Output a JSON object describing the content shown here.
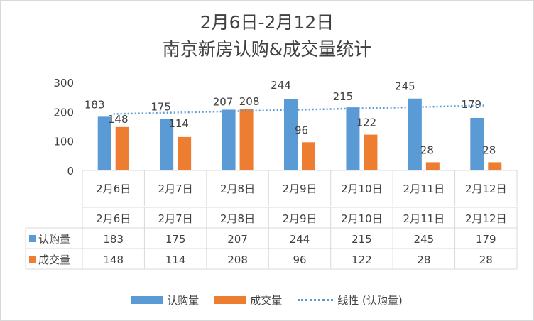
{
  "chart_data": {
    "type": "bar",
    "title": "2月6日-2月12日",
    "subtitle": "南京新房认购&成交量统计",
    "categories": [
      "2月6日",
      "2月7日",
      "2月8日",
      "2月9日",
      "2月10日",
      "2月11日",
      "2月12日"
    ],
    "series": [
      {
        "name": "认购量",
        "color": "#5b9bd5",
        "values": [
          183,
          175,
          207,
          244,
          215,
          245,
          179
        ]
      },
      {
        "name": "成交量",
        "color": "#ed7d31",
        "values": [
          148,
          114,
          208,
          96,
          122,
          28,
          28
        ]
      }
    ],
    "trendline": {
      "name": "线性 (认购量)",
      "series": "认购量",
      "type": "linear",
      "color": "#5b9bd5"
    },
    "ylim": [
      0,
      300
    ],
    "yticks": [
      0,
      100,
      200,
      300
    ],
    "grid": false,
    "data_table": true,
    "legend_position": "bottom"
  }
}
